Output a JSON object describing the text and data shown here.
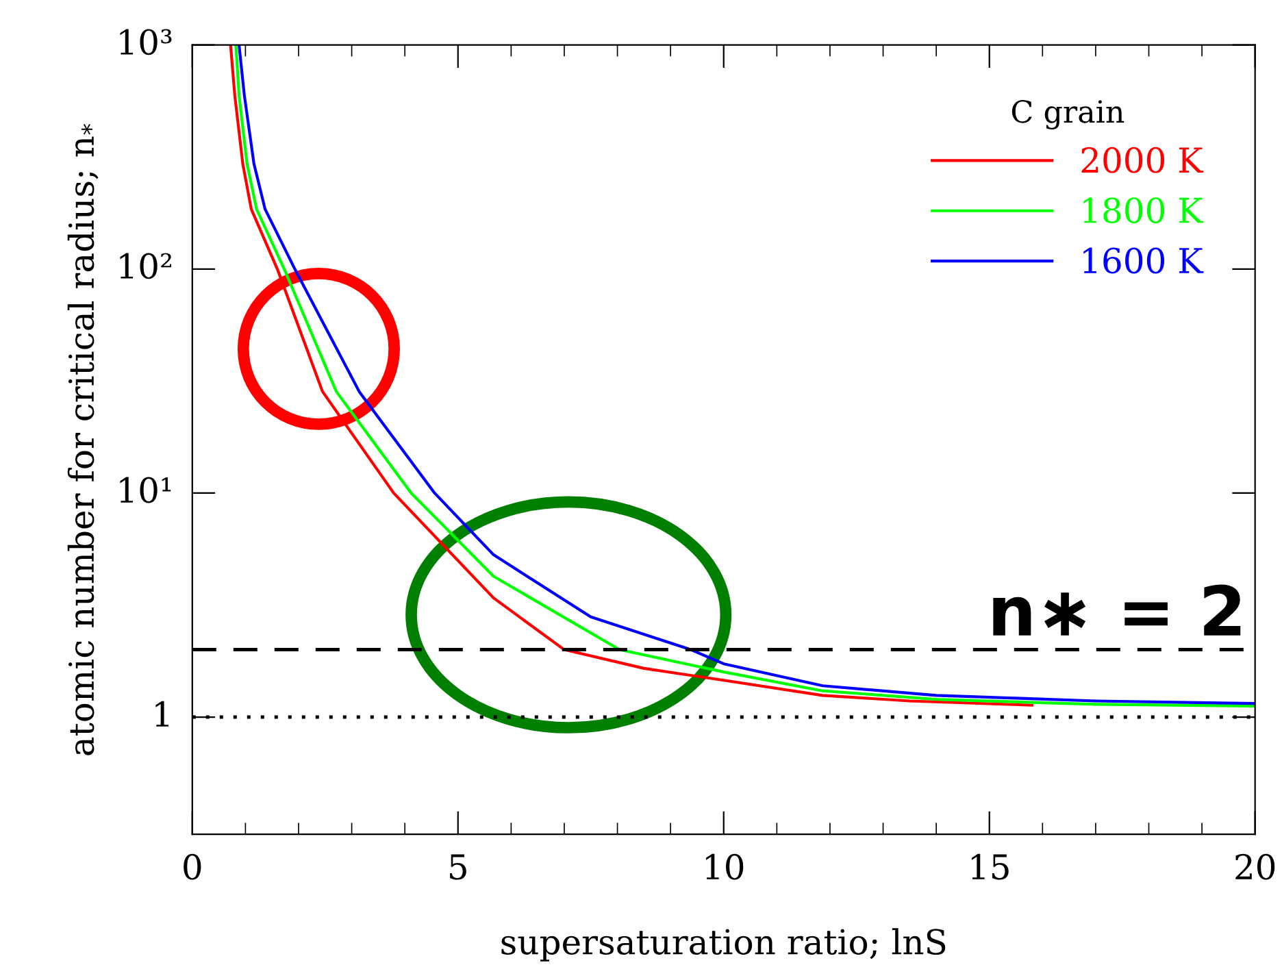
{
  "chart_data": {
    "type": "line",
    "xlabel": "supersaturation ratio; lnS",
    "ylabel": "atomic number for critical radius; n$_{*}$",
    "legend_title": "C grain",
    "log": "y",
    "legend": "top right",
    "line_style": "solid",
    "marker": "none",
    "grid": false,
    "xlim": [
      0,
      20
    ],
    "xticks": [
      0,
      5,
      10,
      15,
      20
    ],
    "ylim": [
      0.3,
      1000
    ],
    "yticks": [
      {
        "value": 1,
        "label": "1"
      },
      {
        "value": 10,
        "label": "10¹"
      },
      {
        "value": 100,
        "label": "10²"
      },
      {
        "value": 1000,
        "label": "10³"
      }
    ],
    "series": [
      {
        "name": "2000 K",
        "color": "#ff0000",
        "x": [
          0.72,
          0.8,
          0.95,
          1.11,
          1.6,
          2.45,
          3.79,
          5.67,
          7.0,
          8.5,
          10,
          11.86,
          13.5,
          15.8
        ],
        "values": [
          1000,
          595,
          295,
          185,
          100,
          28.4,
          10,
          3.4,
          2.0,
          1.65,
          1.46,
          1.25,
          1.18,
          1.13
        ]
      },
      {
        "name": "1800 K",
        "color": "#00ff00",
        "x": [
          0.82,
          0.88,
          1.03,
          1.21,
          1.73,
          2.71,
          4.12,
          5.67,
          8.04,
          10,
          11.86,
          14,
          17,
          20
        ],
        "values": [
          1000,
          595,
          295,
          185,
          100,
          28.4,
          10,
          4.25,
          2.0,
          1.59,
          1.31,
          1.2,
          1.14,
          1.12
        ]
      },
      {
        "name": "1600 K",
        "color": "#0000ff",
        "x": [
          0.88,
          0.98,
          1.16,
          1.37,
          1.93,
          3.14,
          4.56,
          5.67,
          7.5,
          9.38,
          10,
          11.86,
          14,
          17,
          20
        ],
        "values": [
          1000,
          595,
          295,
          185,
          100,
          28.4,
          10,
          5.3,
          2.8,
          2.0,
          1.73,
          1.38,
          1.25,
          1.18,
          1.15
        ]
      }
    ],
    "ref_lines": [
      {
        "axis": "y",
        "value": 2,
        "label": "n∗ = 2",
        "color": "#000000",
        "line_style": "dashed"
      },
      {
        "axis": "y",
        "value": 1,
        "label": null,
        "color": "#000000",
        "line_style": "dotted"
      }
    ]
  }
}
